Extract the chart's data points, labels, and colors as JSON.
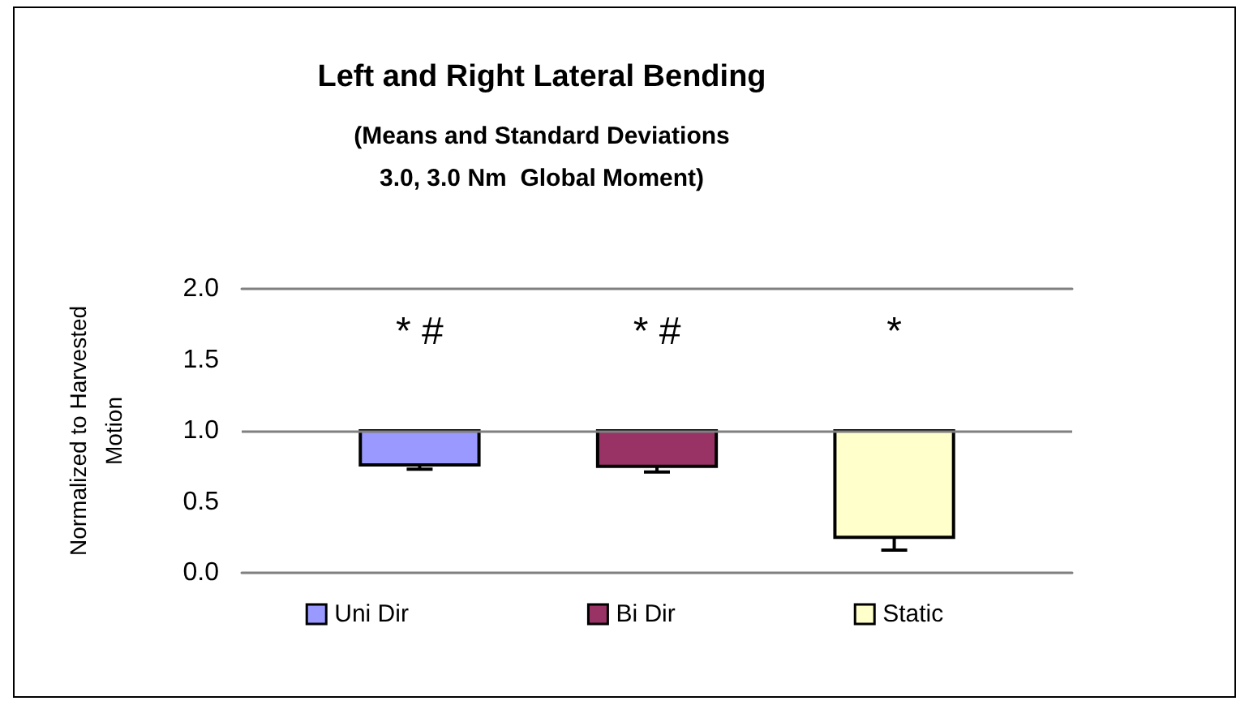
{
  "chart_data": {
    "type": "bar",
    "title": "Left and Right Lateral Bending",
    "subtitle": "(Means and Standard Deviations\n3.0, 3.0 Nm  Global Moment)",
    "ylabel": "Normalized to Harvested\nMotion",
    "categories": [
      null
    ],
    "series": [
      {
        "name": "Uni Dir",
        "color": "#9999ff",
        "values": [
          -0.24
        ],
        "base": [
          1.0
        ],
        "errors": [
          [
            0.73,
            0.76
          ]
        ]
      },
      {
        "name": "Bi Dir",
        "color": "#993366",
        "values": [
          -0.25
        ],
        "base": [
          1.0
        ],
        "errors": [
          [
            0.71,
            0.75
          ]
        ]
      },
      {
        "name": "Static",
        "color": "#ffffcc",
        "values": [
          -0.75
        ],
        "base": [
          1.0
        ],
        "errors": [
          [
            0.16,
            0.25
          ]
        ]
      }
    ],
    "ylim": [
      0,
      2
    ],
    "yticks": [
      {
        "value": 0,
        "label": "0.0"
      },
      {
        "value": 0.5,
        "label": "0.5"
      },
      {
        "value": 1,
        "label": "1.0"
      },
      {
        "value": 1.5,
        "label": "1.5"
      },
      {
        "value": 2,
        "label": "2.0"
      }
    ],
    "ref_lines": [
      {
        "axis": "y",
        "value": 1
      }
    ],
    "annotations": [
      "* #",
      "* #",
      "*"
    ],
    "legend": "bottom",
    "grid": false
  }
}
